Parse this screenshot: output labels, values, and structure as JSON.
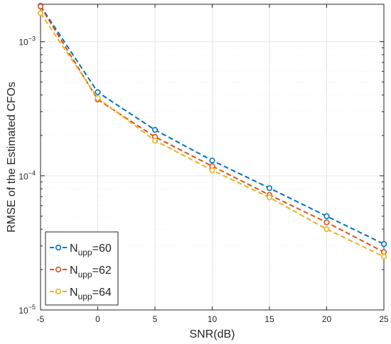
{
  "chart_data": {
    "type": "line",
    "title": "",
    "xlabel": "SNR(dB)",
    "ylabel": "RMSE of the Estimated CFOs",
    "x": [
      -5,
      0,
      5,
      10,
      15,
      20,
      25
    ],
    "xlim": [
      -5,
      25
    ],
    "x_ticks": [
      "-5",
      "0",
      "5",
      "10",
      "15",
      "20",
      "25"
    ],
    "yscale": "log",
    "ylim": [
      1e-05,
      0.0019
    ],
    "y_ticks": [
      {
        "value": 0.001,
        "base": "10",
        "exp": "-3"
      },
      {
        "value": 0.0001,
        "base": "10",
        "exp": "-4"
      },
      {
        "value": 1e-05,
        "base": "10",
        "exp": "-5"
      }
    ],
    "grid": true,
    "legend_position": "bottom-left",
    "series": [
      {
        "name": "N_upp=60",
        "label_main": "N",
        "label_sub": "upp",
        "label_rest": "=60",
        "color": "#0072BD",
        "marker": "circle",
        "line_style": "dashed",
        "values": [
          0.00185,
          0.00042,
          0.00022,
          0.00013,
          8.1e-05,
          5e-05,
          3.1e-05
        ]
      },
      {
        "name": "N_upp=62",
        "label_main": "N",
        "label_sub": "upp",
        "label_rest": "=62",
        "color": "#D95319",
        "marker": "circle",
        "line_style": "dashed",
        "values": [
          0.00183,
          0.00037,
          0.000195,
          0.000118,
          7.2e-05,
          4.5e-05,
          2.7e-05
        ]
      },
      {
        "name": "N_upp=64",
        "label_main": "N",
        "label_sub": "upp",
        "label_rest": "=64",
        "color": "#EDB120",
        "marker": "circle",
        "line_style": "dashed",
        "values": [
          0.00163,
          0.00038,
          0.000183,
          0.00011,
          6.9e-05,
          4e-05,
          2.5e-05
        ]
      }
    ]
  }
}
